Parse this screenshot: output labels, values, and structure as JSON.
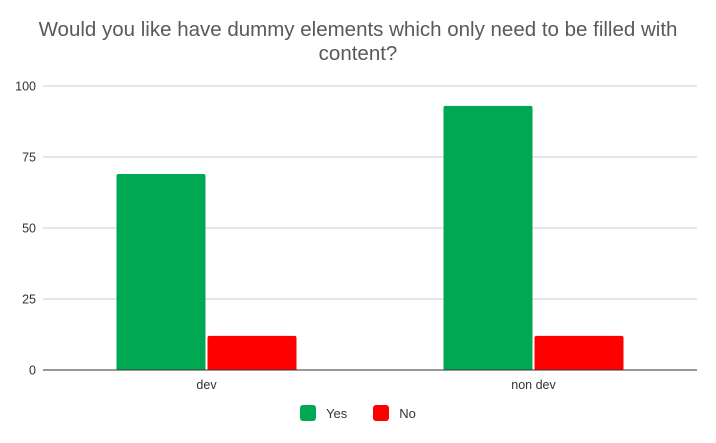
{
  "chart_data": {
    "type": "bar",
    "title": "Would you like have dummy elements which only need to be filled with content?",
    "categories": [
      "dev",
      "non dev"
    ],
    "series": [
      {
        "name": "Yes",
        "values": [
          69,
          93
        ],
        "color": "#00A854"
      },
      {
        "name": "No",
        "values": [
          12,
          12
        ],
        "color": "#FF0000"
      }
    ],
    "ylim": [
      0,
      100
    ],
    "yticks": [
      0,
      25,
      50,
      75,
      100
    ],
    "grid": true,
    "legend_position": "bottom"
  }
}
